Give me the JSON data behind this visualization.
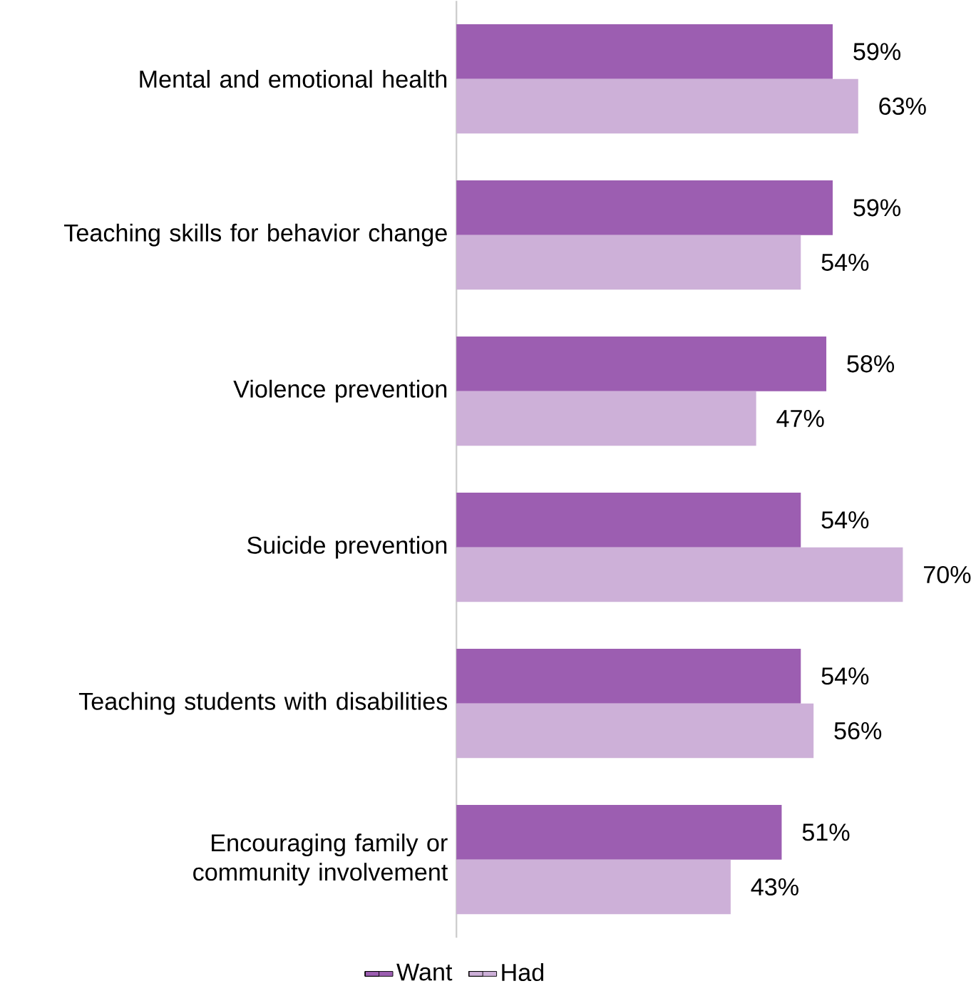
{
  "chart_data": {
    "type": "bar",
    "orientation": "horizontal",
    "legend": "bottom",
    "categories": [
      "Mental and emotional health",
      "Teaching skills for behavior change",
      "Violence prevention",
      "Suicide prevention",
      "Teaching students with disabilities",
      "Encouraging family or community involvement"
    ],
    "series": [
      {
        "name": "Want",
        "color": "#9c5eb1",
        "values": [
          59,
          59,
          58,
          54,
          54,
          51
        ],
        "value_labels": [
          "59%",
          "59%",
          "58%",
          "54%",
          "54%",
          "51%"
        ]
      },
      {
        "name": "Had",
        "color": "#cdb0d8",
        "values": [
          63,
          54,
          47,
          70,
          56,
          43
        ],
        "value_labels": [
          "63%",
          "54%",
          "47%",
          "70%",
          "56%",
          "43%"
        ]
      }
    ]
  }
}
